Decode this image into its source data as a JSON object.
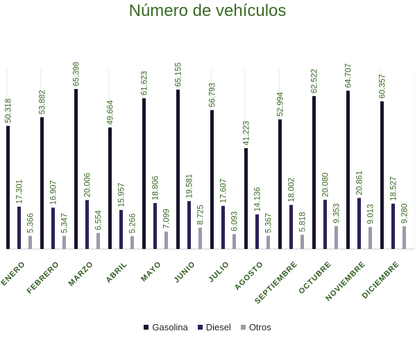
{
  "chart_data": {
    "type": "bar",
    "title": "Número de vehículos",
    "xlabel": "",
    "ylabel": "",
    "ylim": [
      0,
      70000
    ],
    "grid": false,
    "legend_position": "bottom",
    "categories": [
      "ENERO",
      "FEBRERO",
      "MARZO",
      "ABRIL",
      "MAYO",
      "JUNIO",
      "JULIO",
      "AGOSTO",
      "SEPTIEMBRE",
      "OCTUBRE",
      "NOVIEMBRE",
      "DICIEMBRE"
    ],
    "series": [
      {
        "name": "Gasolina",
        "color": "#16132b",
        "values": [
          50318,
          53882,
          65398,
          49664,
          61623,
          65155,
          56793,
          41223,
          52994,
          62522,
          64707,
          60357
        ],
        "labels": [
          "50.318",
          "53.882",
          "65.398",
          "49.664",
          "61.623",
          "65.155",
          "56.793",
          "41.223",
          "52.994",
          "62.522",
          "64.707",
          "60.357"
        ]
      },
      {
        "name": "Diesel",
        "color": "#2b2156",
        "values": [
          17301,
          16907,
          20006,
          15957,
          18806,
          19581,
          17607,
          14136,
          18002,
          20080,
          20861,
          18527
        ],
        "labels": [
          "17.301",
          "16.907",
          "20.006",
          "15.957",
          "18.806",
          "19.581",
          "17.607",
          "14.136",
          "18.002",
          "20.080",
          "20.861",
          "18.527"
        ]
      },
      {
        "name": "Otros",
        "color": "#9b9aab",
        "values": [
          5366,
          5347,
          6554,
          5266,
          7099,
          8725,
          6093,
          5367,
          5818,
          9353,
          9013,
          9280
        ],
        "labels": [
          "5.366",
          "5.347",
          "6.554",
          "5.266",
          "7.099",
          "8.725",
          "6.093",
          "5.367",
          "5.818",
          "9.353",
          "9.013",
          "9.280"
        ]
      }
    ]
  },
  "colors": {
    "title": "#3a6b26",
    "data_label": "#3a6b26",
    "category_label": "#2f5b1f",
    "grid_line": "#e6e6e6",
    "axis_line": "#c8c8c8"
  }
}
